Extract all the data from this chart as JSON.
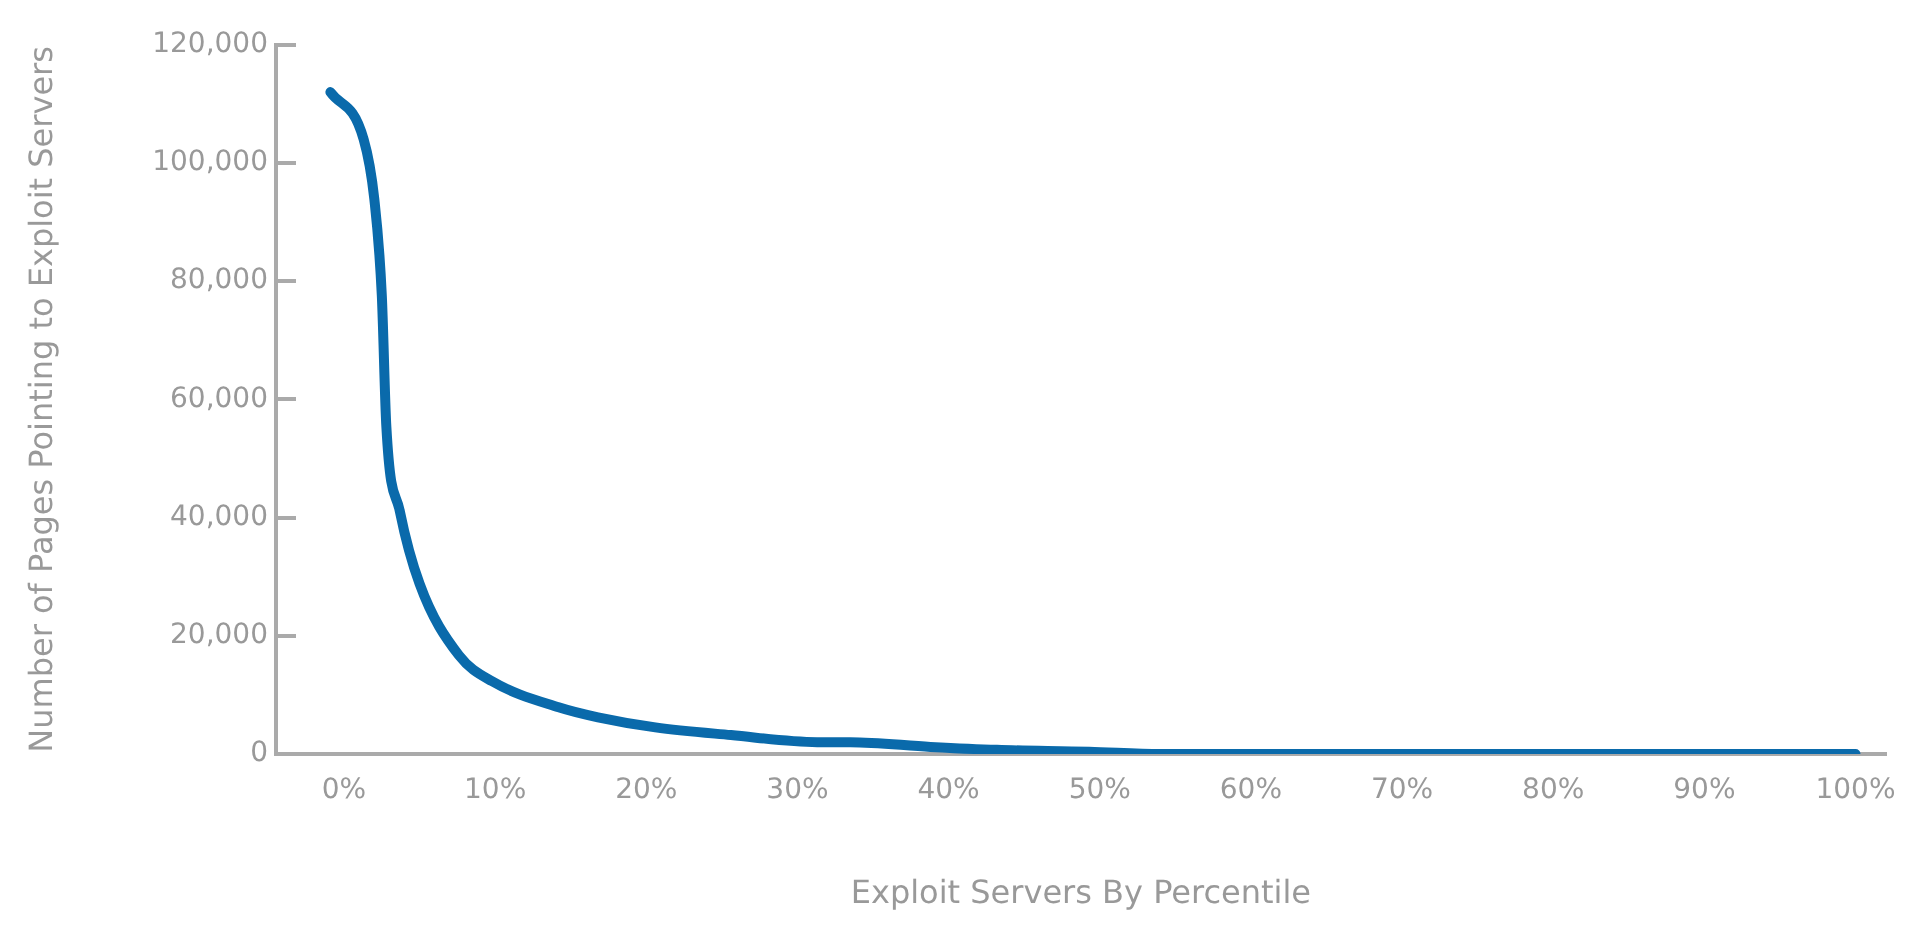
{
  "chart_data": {
    "type": "line",
    "xlabel": "Exploit Servers By Percentile",
    "ylabel": "Number of Pages Pointing to Exploit Servers",
    "x": [
      -0.9,
      1.3,
      2.0,
      2.5,
      2.8,
      3.7,
      5.0,
      7.6,
      9.8,
      14.2,
      16.8,
      20.6,
      25.6,
      31.3,
      33.5,
      38.8,
      43.2,
      49.3,
      54,
      60,
      70,
      80,
      90,
      100
    ],
    "series": [
      {
        "color": "#0a6aab",
        "values": [
          112000,
          104000,
          94000,
          77600,
          55400,
          41000,
          28800,
          16700,
          12300,
          7900,
          6200,
          4500,
          3200,
          2000,
          2000,
          1200,
          700,
          400,
          0,
          0,
          0,
          0,
          0,
          0
        ]
      }
    ],
    "xlim": [
      -4.5,
      102
    ],
    "xticks": [
      {
        "value": 0,
        "label": "0%"
      },
      {
        "value": 10,
        "label": "10%"
      },
      {
        "value": 20,
        "label": "20%"
      },
      {
        "value": 30,
        "label": "30%"
      },
      {
        "value": 40,
        "label": "40%"
      },
      {
        "value": 50,
        "label": "50%"
      },
      {
        "value": 60,
        "label": "60%"
      },
      {
        "value": 70,
        "label": "70%"
      },
      {
        "value": 80,
        "label": "80%"
      },
      {
        "value": 90,
        "label": "90%"
      },
      {
        "value": 100,
        "label": "100%"
      }
    ],
    "ylim": [
      0,
      120000
    ],
    "yticks": [
      0,
      {
        "value": 20000,
        "label": "20,000"
      },
      {
        "value": 40000,
        "label": "40,000"
      },
      {
        "value": 60000,
        "label": "60,000"
      },
      {
        "value": 80000,
        "label": "80,000"
      },
      {
        "value": 100000,
        "label": "100,000"
      },
      {
        "value": 120000,
        "label": "120,000"
      }
    ],
    "grid": false,
    "legend": false,
    "marker": "none",
    "line_style": "solid"
  }
}
